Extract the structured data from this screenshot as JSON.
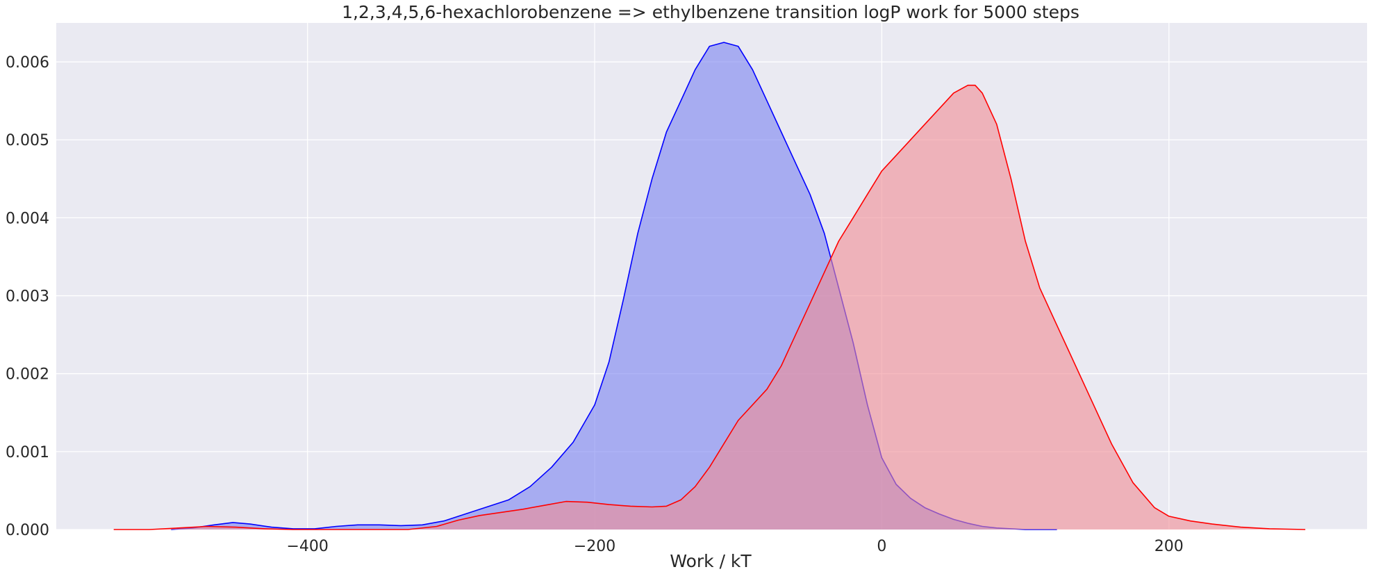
{
  "chart_data": {
    "type": "area",
    "title": "1,2,3,4,5,6-hexachlorobenzene => ethylbenzene transition logP work for 5000 steps",
    "xlabel": "Work / kT",
    "ylabel": "",
    "xlim": [
      -575,
      338
    ],
    "ylim": [
      0,
      0.0065
    ],
    "xticks": [
      -400,
      -200,
      0,
      200
    ],
    "yticks": [
      0,
      0.001,
      0.002,
      0.003,
      0.004,
      0.005,
      0.006
    ],
    "xtick_labels": [
      "−400",
      "−200",
      "0",
      "200"
    ],
    "ytick_labels": [
      "0.000",
      "0.001",
      "0.002",
      "0.003",
      "0.004",
      "0.005",
      "0.006"
    ],
    "grid": true,
    "background_color": "#eaeaf2",
    "series": [
      {
        "line_color": "#0000ff",
        "fill_color": "#7a82f0",
        "x": [
          -495,
          -480,
          -465,
          -452,
          -440,
          -425,
          -410,
          -395,
          -380,
          -365,
          -350,
          -335,
          -320,
          -305,
          -290,
          -275,
          -260,
          -245,
          -230,
          -215,
          -200,
          -190,
          -180,
          -170,
          -160,
          -150,
          -140,
          -130,
          -120,
          -110,
          -100,
          -90,
          -80,
          -70,
          -60,
          -50,
          -40,
          -30,
          -20,
          -10,
          0,
          10,
          20,
          30,
          40,
          50,
          60,
          70,
          80,
          90,
          100,
          110,
          122
        ],
        "y": [
          0.0,
          2e-05,
          6e-05,
          9e-05,
          7e-05,
          3e-05,
          1e-05,
          1e-05,
          4e-05,
          6e-05,
          6e-05,
          5e-05,
          6e-05,
          0.00011,
          0.0002,
          0.00029,
          0.00038,
          0.00055,
          0.0008,
          0.00112,
          0.0016,
          0.00215,
          0.00295,
          0.0038,
          0.0045,
          0.0051,
          0.0055,
          0.0059,
          0.0062,
          0.00625,
          0.0062,
          0.0059,
          0.0055,
          0.0051,
          0.0047,
          0.0043,
          0.0038,
          0.0031,
          0.0024,
          0.0016,
          0.00092,
          0.00058,
          0.0004,
          0.00028,
          0.0002,
          0.00013,
          8e-05,
          4e-05,
          2e-05,
          1e-05,
          0.0,
          0.0,
          0.0
        ]
      },
      {
        "line_color": "#ff0000",
        "fill_color": "#f08c95",
        "x": [
          -535,
          -510,
          -490,
          -470,
          -450,
          -430,
          -410,
          -390,
          -370,
          -350,
          -330,
          -310,
          -295,
          -280,
          -265,
          -250,
          -235,
          -220,
          -205,
          -190,
          -175,
          -160,
          -150,
          -140,
          -130,
          -120,
          -110,
          -100,
          -90,
          -80,
          -70,
          -60,
          -50,
          -40,
          -30,
          -20,
          -10,
          0,
          10,
          20,
          30,
          40,
          50,
          60,
          65,
          70,
          80,
          90,
          100,
          110,
          120,
          130,
          145,
          160,
          175,
          190,
          200,
          215,
          230,
          250,
          270,
          295
        ],
        "y": [
          0.0,
          0.0,
          2e-05,
          4e-05,
          3e-05,
          1e-05,
          0.0,
          0.0,
          0.0,
          0.0,
          0.0,
          4e-05,
          0.00012,
          0.00018,
          0.00022,
          0.00026,
          0.00031,
          0.00036,
          0.00035,
          0.00032,
          0.0003,
          0.00029,
          0.0003,
          0.00038,
          0.00055,
          0.0008,
          0.0011,
          0.0014,
          0.0016,
          0.0018,
          0.0021,
          0.0025,
          0.0029,
          0.0033,
          0.0037,
          0.004,
          0.0043,
          0.0046,
          0.0048,
          0.005,
          0.0052,
          0.0054,
          0.0056,
          0.0057,
          0.0057,
          0.0056,
          0.0052,
          0.0045,
          0.0037,
          0.0031,
          0.0027,
          0.0023,
          0.0017,
          0.0011,
          0.0006,
          0.00028,
          0.00017,
          0.00011,
          7e-05,
          3e-05,
          1e-05,
          0.0
        ]
      }
    ]
  }
}
